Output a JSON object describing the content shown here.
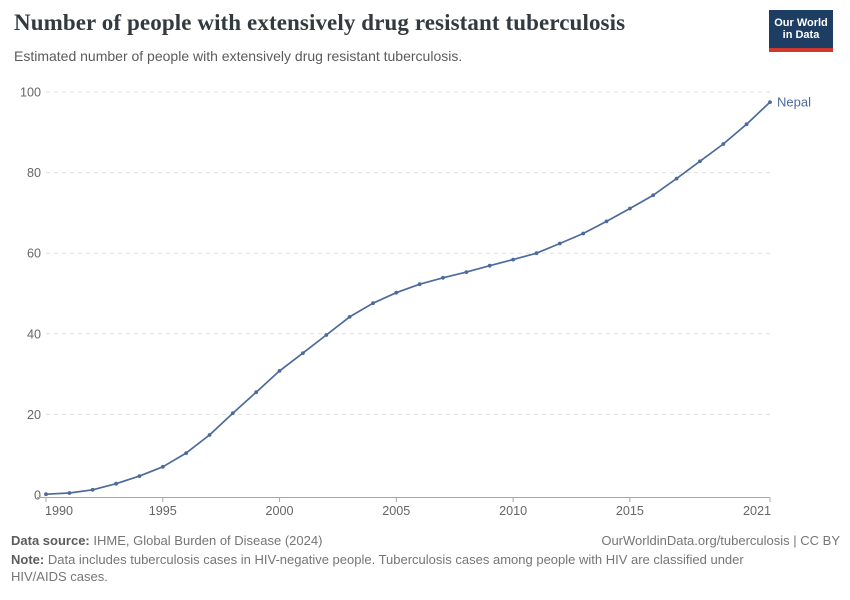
{
  "header": {
    "title": "Number of people with extensively drug resistant tuberculosis",
    "subtitle": "Estimated number of people with extensively drug resistant tuberculosis.",
    "logo_line1": "Our World",
    "logo_line2": "in Data",
    "logo_bg_color": "#1d3d63",
    "logo_bar_color": "#d0382e"
  },
  "chart_data": {
    "type": "line",
    "title": "Number of people with extensively drug resistant tuberculosis",
    "xlabel": "",
    "ylabel": "",
    "xlim": [
      1990,
      2021
    ],
    "ylim": [
      0,
      100
    ],
    "xticks": [
      1990,
      1995,
      2000,
      2005,
      2010,
      2015,
      2021
    ],
    "yticks": [
      0,
      20,
      40,
      60,
      80,
      100
    ],
    "grid": "horizontal-dashed",
    "legend_position": "end-of-line-label",
    "x": [
      1990,
      1991,
      1992,
      1993,
      1994,
      1995,
      1996,
      1997,
      1998,
      1999,
      2000,
      2001,
      2002,
      2003,
      2004,
      2005,
      2006,
      2007,
      2008,
      2009,
      2010,
      2011,
      2012,
      2013,
      2014,
      2015,
      2016,
      2017,
      2018,
      2019,
      2020,
      2021
    ],
    "series": [
      {
        "name": "Nepal",
        "color": "#4c6a9c",
        "values": [
          0.2,
          0.5,
          1.3,
          2.8,
          4.7,
          7.0,
          10.4,
          14.9,
          20.3,
          25.5,
          30.8,
          35.2,
          39.7,
          44.2,
          47.6,
          50.2,
          52.3,
          53.9,
          55.3,
          56.9,
          58.4,
          60.0,
          62.4,
          64.9,
          67.9,
          71.1,
          74.4,
          78.5,
          82.8,
          87.1,
          92.0,
          97.5
        ]
      }
    ],
    "colors": {
      "grid": "#dedede",
      "axis": "#a7a7a7",
      "tick_label": "#666666"
    }
  },
  "footer": {
    "source_label": "Data source:",
    "source_value": "IHME, Global Burden of Disease (2024)",
    "credit": "OurWorldinData.org/tuberculosis | CC BY",
    "note_label": "Note:",
    "note_value": "Data includes tuberculosis cases in HIV-negative people. Tuberculosis cases among people with HIV are classified under HIV/AIDS cases."
  }
}
